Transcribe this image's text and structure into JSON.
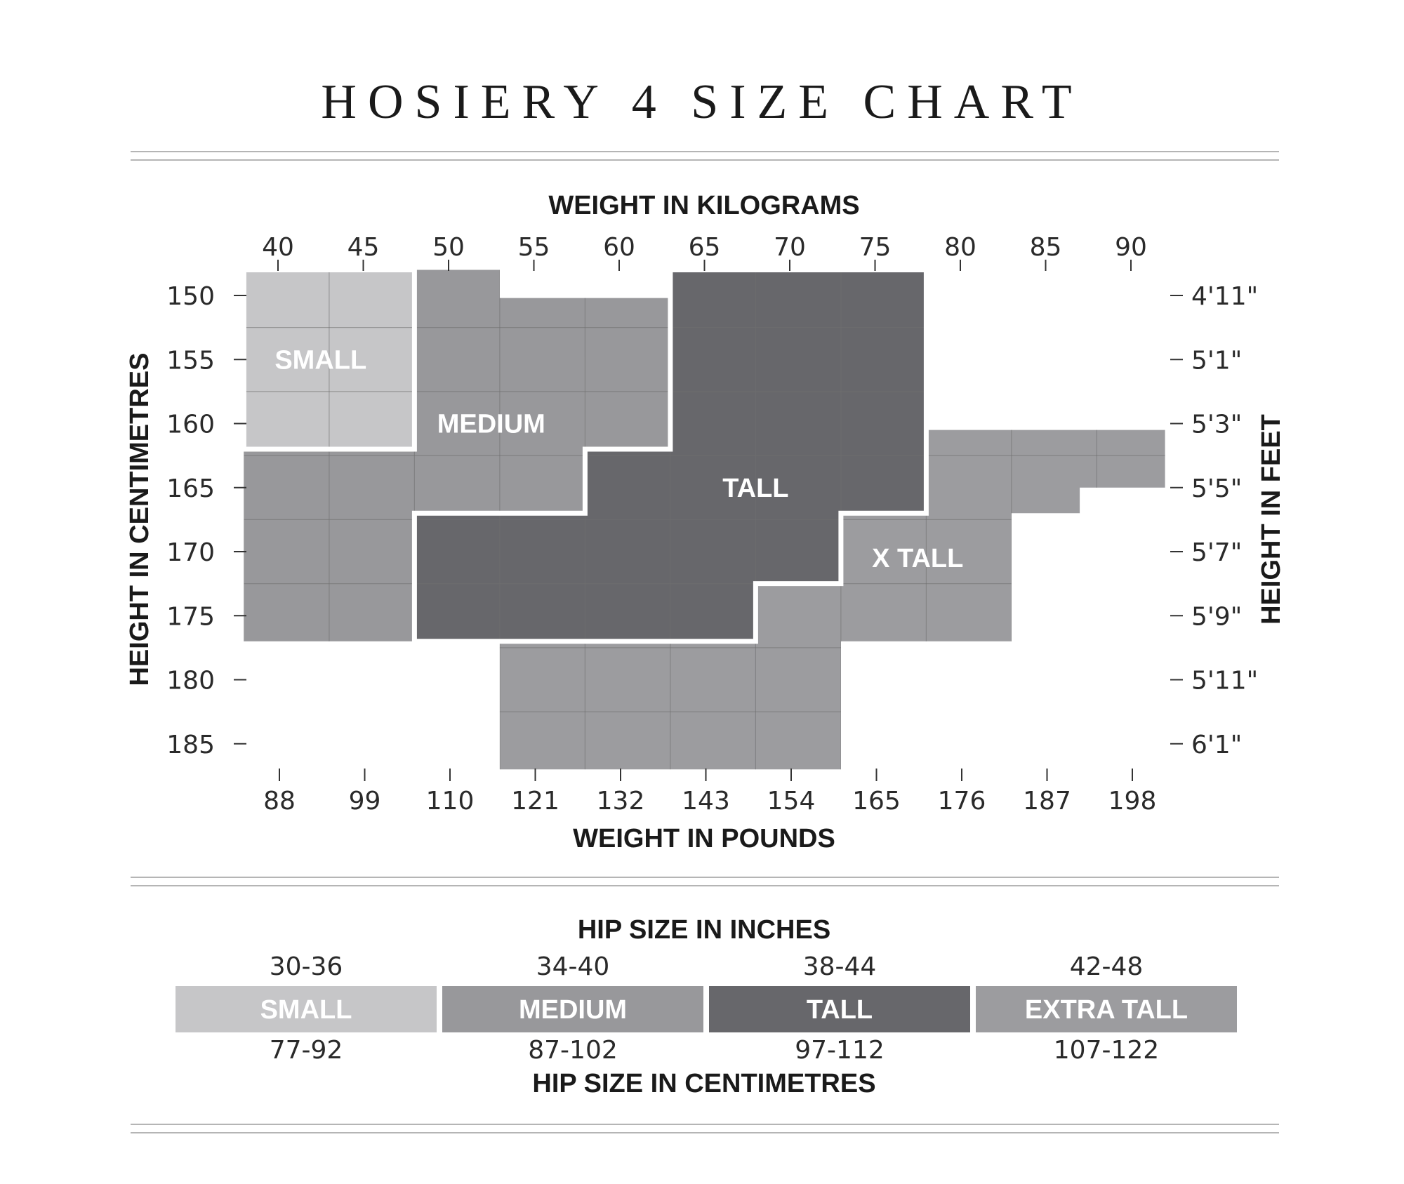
{
  "title": "HOSIERY 4 SIZE CHART",
  "colors": {
    "small": "#c6c6c8",
    "medium": "#98989b",
    "tall": "#67676b",
    "xtall": "#9c9c9f",
    "rule": "#b5b5b5",
    "outline": "#ffffff"
  },
  "chart_data": {
    "type": "heatmap",
    "top_axis": {
      "label": "WEIGHT IN KILOGRAMS",
      "ticks": [
        40,
        45,
        50,
        55,
        60,
        65,
        70,
        75,
        80,
        85,
        90
      ]
    },
    "bottom_axis": {
      "label": "WEIGHT IN POUNDS",
      "ticks": [
        "88",
        "99",
        "110",
        "121",
        "132",
        "143",
        "154",
        "165",
        "176",
        "187",
        "198"
      ]
    },
    "left_axis": {
      "label": "HEIGHT IN CENTIMETRES",
      "ticks": [
        150,
        155,
        160,
        165,
        170,
        175,
        180,
        185
      ]
    },
    "right_axis": {
      "label": "HEIGHT IN FEET",
      "ticks": [
        "4'11\"",
        "5'1\"",
        "5'3\"",
        "5'5\"",
        "5'7\"",
        "5'9\"",
        "5'11\"",
        "6'1\""
      ]
    },
    "weight_kg_range": [
      40,
      90
    ],
    "height_cm_range": [
      150,
      185
    ],
    "regions": [
      {
        "label": "SMALL",
        "color_key": "small",
        "kg_range": [
          38,
          48
        ],
        "cm_range": [
          148,
          162
        ],
        "label_at": {
          "kg": 42.5,
          "cm": 155
        },
        "outline": [
          [
            38,
            148
          ],
          [
            48,
            148
          ],
          [
            48,
            162
          ],
          [
            38,
            162
          ]
        ]
      },
      {
        "label": "MEDIUM",
        "color_key": "medium",
        "kg_range": [
          38,
          63
        ],
        "cm_range": [
          148,
          177
        ],
        "label_at": {
          "kg": 52.5,
          "cm": 160
        },
        "outline": [
          [
            48,
            148
          ],
          [
            53,
            148
          ],
          [
            53,
            150.2
          ],
          [
            63,
            150.2
          ],
          [
            63,
            162
          ],
          [
            58,
            162
          ],
          [
            58,
            167
          ],
          [
            48,
            167
          ],
          [
            48,
            162
          ],
          [
            38,
            162
          ],
          [
            38,
            177
          ],
          [
            48,
            177
          ],
          [
            48,
            167
          ]
        ]
      },
      {
        "label": "TALL",
        "color_key": "tall",
        "kg_range": [
          48,
          78
        ],
        "cm_range": [
          148,
          177
        ],
        "label_at": {
          "kg": 68,
          "cm": 165
        },
        "outline": [
          [
            63,
            148
          ],
          [
            78,
            148
          ],
          [
            78,
            167
          ],
          [
            73,
            167
          ],
          [
            73,
            172.5
          ],
          [
            68,
            172.5
          ],
          [
            68,
            177
          ],
          [
            48,
            177
          ],
          [
            48,
            167
          ],
          [
            58,
            167
          ],
          [
            58,
            162
          ],
          [
            63,
            162
          ]
        ]
      },
      {
        "label": "X TALL",
        "color_key": "xtall",
        "kg_range": [
          53,
          92
        ],
        "cm_range": [
          160.5,
          187
        ],
        "label_at": {
          "kg": 77.5,
          "cm": 170.5
        },
        "outline": [
          [
            78,
            160.5
          ],
          [
            92,
            160.5
          ],
          [
            92,
            165
          ],
          [
            87,
            165
          ],
          [
            87,
            167
          ],
          [
            83,
            167
          ],
          [
            83,
            177
          ],
          [
            73,
            177
          ],
          [
            73,
            187
          ],
          [
            53,
            187
          ],
          [
            53,
            177
          ],
          [
            68,
            177
          ],
          [
            68,
            172.5
          ],
          [
            73,
            172.5
          ],
          [
            73,
            167
          ],
          [
            78,
            167
          ]
        ]
      }
    ],
    "grid_step": {
      "kg": 5,
      "cm": 5
    }
  },
  "hip": {
    "inches_label": "HIP SIZE IN INCHES",
    "cm_label": "HIP SIZE IN CENTIMETRES",
    "sizes": [
      {
        "name": "SMALL",
        "inches": "30-36",
        "cm": "77-92",
        "color_key": "small"
      },
      {
        "name": "MEDIUM",
        "inches": "34-40",
        "cm": "87-102",
        "color_key": "medium"
      },
      {
        "name": "TALL",
        "inches": "38-44",
        "cm": "97-112",
        "color_key": "tall"
      },
      {
        "name": "EXTRA TALL",
        "inches": "42-48",
        "cm": "107-122",
        "color_key": "xtall"
      }
    ]
  }
}
